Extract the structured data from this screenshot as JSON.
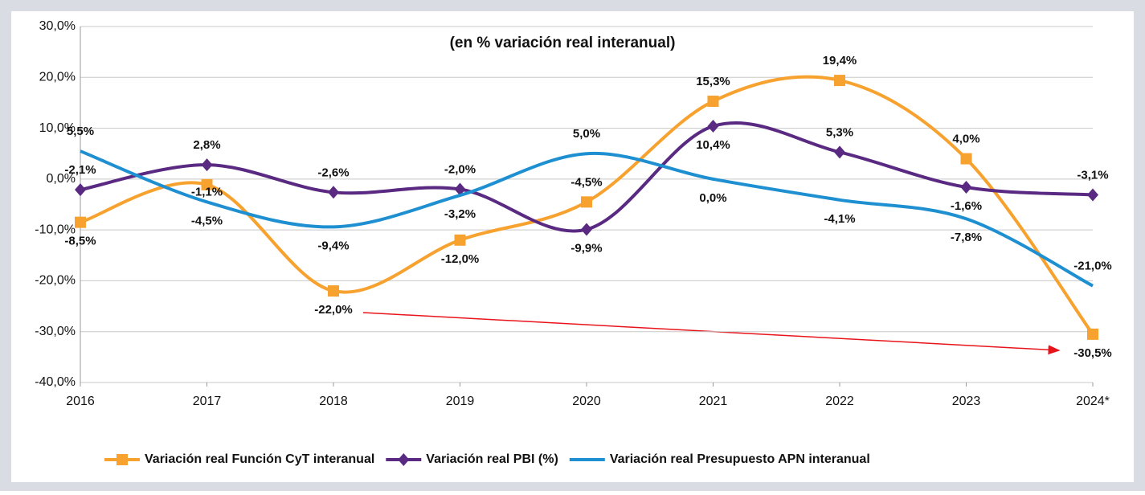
{
  "chart_data": {
    "type": "line",
    "title": "(en % variación real interanual)",
    "categories": [
      "2016",
      "2017",
      "2018",
      "2019",
      "2020",
      "2021",
      "2022",
      "2023",
      "2024*"
    ],
    "ylim": [
      -40,
      30
    ],
    "yticks": [
      {
        "value": -40,
        "label": "-40,0%"
      },
      {
        "value": -30,
        "label": "-30,0%"
      },
      {
        "value": -20,
        "label": "-20,0%"
      },
      {
        "value": -10,
        "label": "-10,0%"
      },
      {
        "value": 0,
        "label": "0,0%"
      },
      {
        "value": 10,
        "label": "10,0%"
      },
      {
        "value": 20,
        "label": "20,0%"
      },
      {
        "value": 30,
        "label": "30,0%"
      }
    ],
    "grid": true,
    "series": [
      {
        "name": "Variación real Función CyT interanual",
        "color": "#f7a12e",
        "marker": "square",
        "values": [
          -8.5,
          -1.1,
          -22.0,
          -12.0,
          -4.5,
          15.3,
          19.4,
          4.0,
          -30.5
        ],
        "value_labels": [
          "-8,5%",
          "-1,1%",
          "-22,0%",
          "-12,0%",
          "-4,5%",
          "15,3%",
          "19,4%",
          "4,0%",
          "-30,5%"
        ]
      },
      {
        "name": "Variación real PBI (%)",
        "color": "#5a2a82",
        "marker": "diamond",
        "values": [
          -2.1,
          2.8,
          -2.6,
          -2.0,
          -9.9,
          10.4,
          5.3,
          -1.6,
          -3.1
        ],
        "value_labels": [
          "-2,1%",
          "2,8%",
          "-2,6%",
          "-2,0%",
          "-9,9%",
          "10,4%",
          "5,3%",
          "-1,6%",
          "-3,1%"
        ]
      },
      {
        "name": "Variación real Presupuesto APN interanual",
        "color": "#1e8fd0",
        "marker": "none",
        "values": [
          5.5,
          -4.5,
          -9.4,
          -3.2,
          5.0,
          0.0,
          -4.1,
          -7.8,
          -21.0
        ],
        "value_labels": [
          "5,5%",
          "-4,5%",
          "-9,4%",
          "-3,2%",
          "5,0%",
          "0,0%",
          "-4,1%",
          "-7,8%",
          "-21,0%"
        ]
      }
    ]
  }
}
